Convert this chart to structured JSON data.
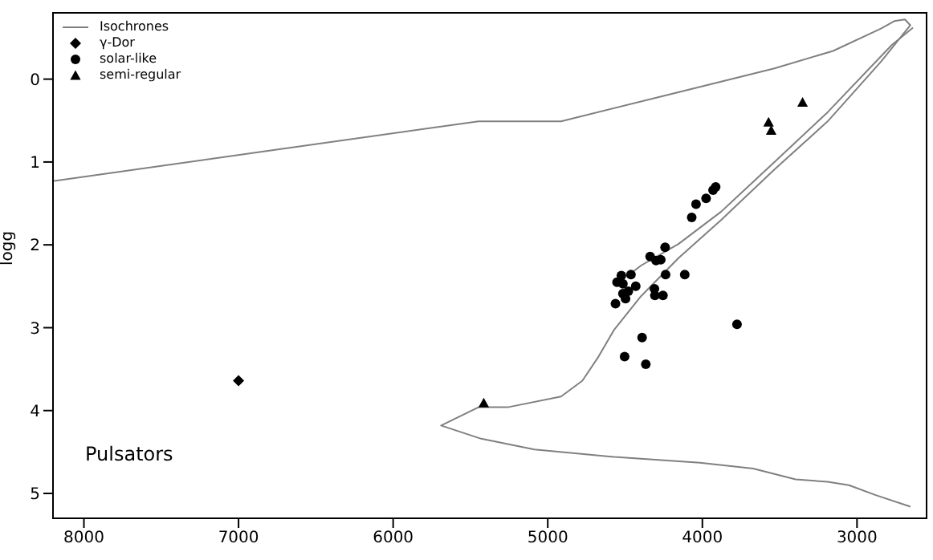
{
  "chart_data": {
    "type": "scatter",
    "ylabel": "logg",
    "xlim": [
      8200,
      2550
    ],
    "ylim": [
      5.3,
      -0.8
    ],
    "xticks": [
      8000,
      7000,
      6000,
      5000,
      4000,
      3000
    ],
    "yticks": [
      0,
      1,
      2,
      3,
      4,
      5
    ],
    "grid": false,
    "legend": "top left",
    "annotations": [
      "Pulsators"
    ],
    "series": [
      {
        "name": "Isochrones",
        "type": "line",
        "color": "#808080",
        "marker": "none",
        "x": [
          2655,
          2879,
          3052,
          3190,
          3397,
          3672,
          4017,
          4569,
          5086,
          5431,
          5690,
          5448,
          5259,
          4914,
          4776,
          4672,
          4569,
          4397,
          4155,
          3879,
          3534,
          3190,
          2845,
          2655,
          2690,
          2759,
          2845,
          3155,
          3534,
          4224,
          4914,
          5448,
          6828,
          8200
        ],
        "values": [
          5.16,
          5.02,
          4.9,
          4.86,
          4.83,
          4.7,
          4.63,
          4.56,
          4.47,
          4.34,
          4.18,
          3.96,
          3.96,
          3.83,
          3.64,
          3.35,
          3.02,
          2.62,
          2.16,
          1.7,
          1.09,
          0.51,
          -0.21,
          -0.65,
          -0.72,
          -0.7,
          -0.61,
          -0.34,
          -0.13,
          0.19,
          0.51,
          0.51,
          0.87,
          1.23
        ]
      },
      {
        "type": "line",
        "color": "#808080",
        "marker": "none",
        "x": [
          2638,
          2776,
          3190,
          3534,
          3879,
          4155,
          4397,
          4466
        ],
        "values": [
          -0.62,
          -0.41,
          0.4,
          1.0,
          1.6,
          1.99,
          2.25,
          2.35
        ]
      },
      {
        "name": "γ-Dor",
        "marker": "diamond",
        "color": "#000000",
        "x": [
          7000
        ],
        "values": [
          3.64
        ]
      },
      {
        "name": "solar-like",
        "marker": "circle",
        "color": "#000000",
        "x": [
          3914,
          3931,
          3976,
          4041,
          4069,
          4241,
          4338,
          4300,
          4269,
          4114,
          4238,
          4462,
          4524,
          4552,
          4514,
          4431,
          4479,
          4310,
          4514,
          4307,
          4255,
          4497,
          4562,
          3776,
          4390,
          4503,
          4366
        ],
        "values": [
          1.3,
          1.34,
          1.44,
          1.51,
          1.67,
          2.03,
          2.14,
          2.19,
          2.18,
          2.36,
          2.36,
          2.36,
          2.37,
          2.45,
          2.47,
          2.5,
          2.56,
          2.53,
          2.59,
          2.61,
          2.61,
          2.65,
          2.71,
          2.96,
          3.12,
          3.35,
          3.44
        ]
      },
      {
        "name": "semi-regular",
        "marker": "triangle",
        "color": "#000000",
        "x": [
          3352,
          3572,
          3555,
          5414
        ],
        "values": [
          0.28,
          0.52,
          0.62,
          3.91
        ]
      }
    ]
  }
}
